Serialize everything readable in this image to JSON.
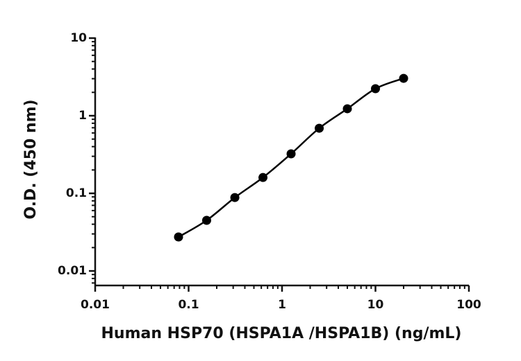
{
  "chart_data": {
    "type": "scatter",
    "x_label": "Human HSP70 (HSPA1A /HSPA1B) (ng/mL)",
    "y_label": "O.D. (450 nm)",
    "x": [
      0.078,
      0.156,
      0.3125,
      0.625,
      1.25,
      2.5,
      5,
      10,
      20
    ],
    "values": [
      0.0274,
      0.0449,
      0.0883,
      0.16,
      0.323,
      0.69,
      1.23,
      2.23,
      3.03
    ],
    "color": "#000000",
    "fit_line": true,
    "xscale": "log",
    "yscale": "log",
    "xlim": [
      0.01,
      100
    ],
    "ylim": [
      0.0065,
      10
    ],
    "xticks": [
      0.01,
      0.1,
      1,
      10,
      100
    ],
    "yticks": [
      0.01,
      0.1,
      1,
      10
    ]
  }
}
